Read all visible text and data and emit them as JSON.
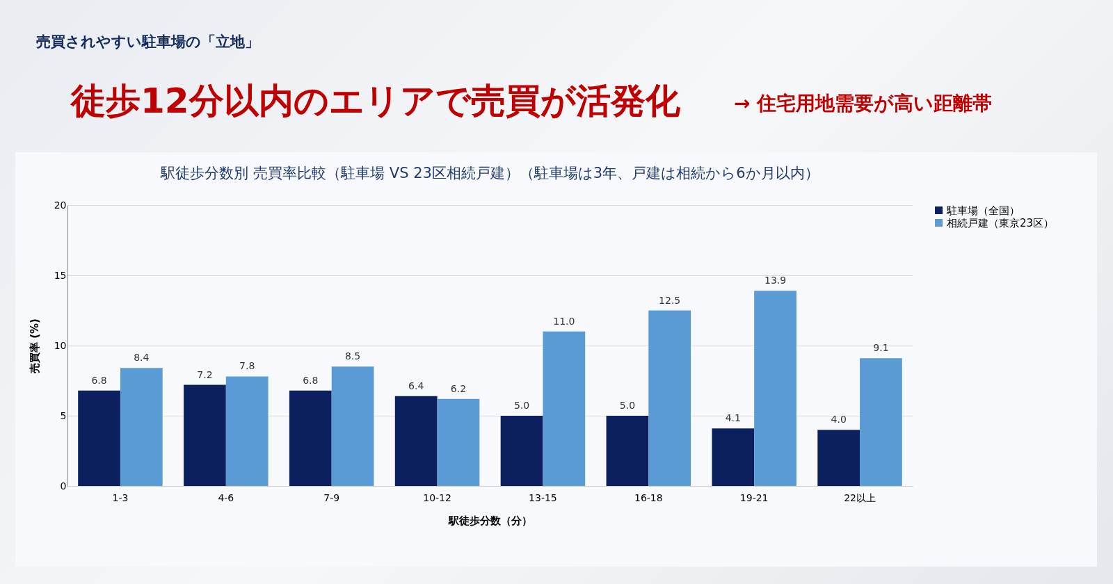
{
  "chart_data": {
    "type": "bar",
    "title": "駅徒歩分数別 売買率比較（駐車場 VS 23区相続戸建）（駐車場は3年、戸建は相続から6か月以内）",
    "annotations": [
      "売買されやすい駐車場の「立地」",
      "徒歩12分以内のエリアで売買が活発化",
      "→ 住宅用地需要が高い距離帯"
    ],
    "xlabel": "駅徒歩分数（分）",
    "ylabel": "売買率 (%)",
    "categories": [
      "1-3",
      "4-6",
      "7-9",
      "10-12",
      "13-15",
      "16-18",
      "19-21",
      "22以上"
    ],
    "series": [
      {
        "name": "駐車場（全国）",
        "color": "#0c1f5e",
        "values": [
          6.8,
          7.2,
          6.8,
          6.4,
          5.0,
          5.0,
          4.1,
          4.0
        ],
        "value_labels": [
          "6.8",
          "7.2",
          "6.8",
          "6.4",
          "5.0",
          "5.0",
          "4.1",
          "4.0"
        ]
      },
      {
        "name": "相続戸建（東京23区）",
        "color": "#5b9bd5",
        "values": [
          8.4,
          7.8,
          8.5,
          6.2,
          11.0,
          12.5,
          13.9,
          9.1
        ],
        "value_labels": [
          "8.4",
          "7.8",
          "8.5",
          "6.2",
          "11.0",
          "12.5",
          "13.9",
          "9.1"
        ]
      }
    ],
    "ylim": [
      0,
      20
    ],
    "yticks": [
      0,
      5,
      10,
      15,
      20
    ],
    "grid": "y",
    "legend": "top right"
  }
}
